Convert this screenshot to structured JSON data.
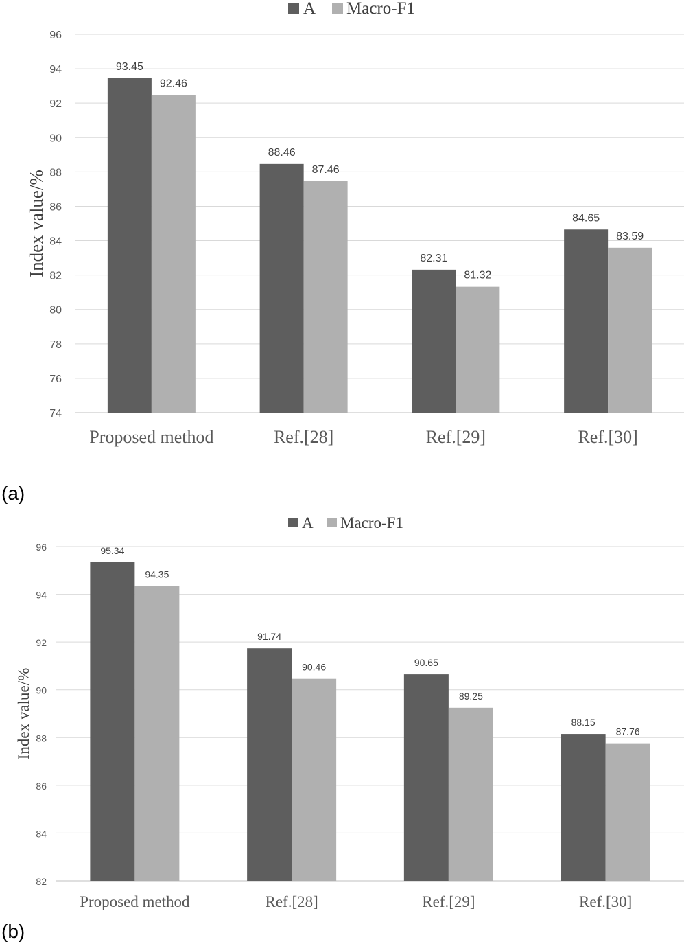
{
  "chart_data": [
    {
      "type": "bar",
      "panel_label": "(a)",
      "categories": [
        "Proposed method",
        "Ref.[28]",
        "Ref.[29]",
        "Ref.[30]"
      ],
      "series": [
        {
          "name": "A",
          "color": "#5e5e5e",
          "values": [
            93.45,
            88.46,
            82.31,
            84.65
          ]
        },
        {
          "name": "Macro-F1",
          "color": "#b0b0b0",
          "values": [
            92.46,
            87.46,
            81.32,
            83.59
          ]
        }
      ],
      "ylabel": "Index value/%",
      "xlabel": "",
      "ylim": [
        74,
        96
      ],
      "yticks": [
        74,
        76,
        78,
        80,
        82,
        84,
        86,
        88,
        90,
        92,
        94,
        96
      ],
      "legend_position": "top-center",
      "grid": true
    },
    {
      "type": "bar",
      "panel_label": "(b)",
      "categories": [
        "Proposed method",
        "Ref.[28]",
        "Ref.[29]",
        "Ref.[30]"
      ],
      "series": [
        {
          "name": "A",
          "color": "#5e5e5e",
          "values": [
            95.34,
            91.74,
            90.65,
            88.15
          ]
        },
        {
          "name": "Macro-F1",
          "color": "#b0b0b0",
          "values": [
            94.35,
            90.46,
            89.25,
            87.76
          ]
        }
      ],
      "ylabel": "Index value/%",
      "xlabel": "",
      "ylim": [
        82,
        96
      ],
      "yticks": [
        82,
        84,
        86,
        88,
        90,
        92,
        94,
        96
      ],
      "legend_position": "top-center",
      "grid": true
    }
  ]
}
